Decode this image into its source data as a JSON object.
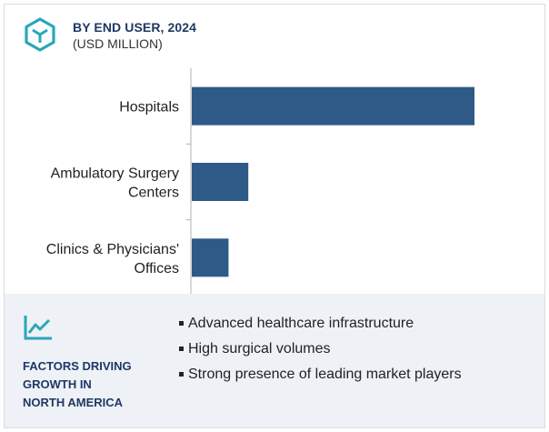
{
  "header": {
    "title": "BY END USER, 2024",
    "subtitle": "(USD MILLION)",
    "icon": "hexagon-network-icon"
  },
  "chart_data": {
    "type": "bar",
    "orientation": "horizontal",
    "categories": [
      [
        "Hospitals"
      ],
      [
        "Ambulatory Surgery",
        "Centers"
      ],
      [
        "Clinics & Physicians'",
        "Offices"
      ]
    ],
    "values": [
      100,
      20,
      13
    ],
    "value_note": "relative bar lengths, no axis values printed",
    "bar_color": "#2d5a87",
    "axis_color": "#b0b0b0",
    "grid": false
  },
  "factors": {
    "icon": "trend-line-icon",
    "title_lines": [
      "FACTORS DRIVING",
      "GROWTH IN",
      "NORTH AMERICA"
    ],
    "items": [
      "Advanced healthcare infrastructure",
      "High surgical volumes",
      "Strong presence of leading market players"
    ]
  },
  "colors": {
    "accent": "#1f3864",
    "icon_teal": "#2aa7b8",
    "panel_bg": "#eef1f6"
  }
}
